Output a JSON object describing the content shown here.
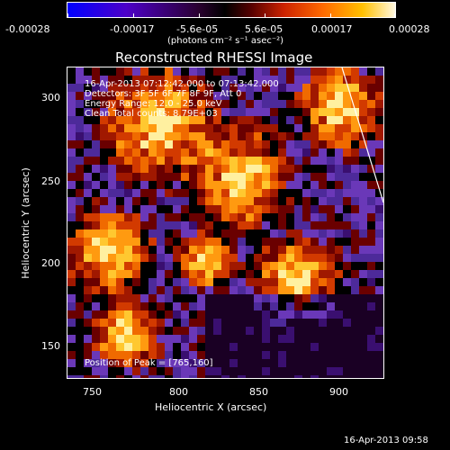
{
  "colorbar": {
    "tick_labels": [
      "-0.00028",
      "-0.00017",
      "-5.6e-05",
      "5.6e-05",
      "0.00017",
      "0.00028"
    ],
    "units_label": "(photons cm⁻² s⁻¹ asec⁻²)"
  },
  "plot": {
    "title": "Reconstructed RHESSI Image",
    "info_lines": [
      "16-Apr-2013 07:12:42.000 to 07:13:42.000",
      "Detectors: 3F 5F 6F 7F 8F 9F, Att 0",
      "Energy Range: 12.0 - 25.0 keV",
      "Clean     Total counts: 8.79E+03"
    ],
    "peak_label": "Position of Peak = [765,160]",
    "x_axis_label": "Heliocentric X (arcsec)",
    "y_axis_label": "Heliocentric Y (arcsec)",
    "x_ticks": [
      "750",
      "800",
      "850",
      "900"
    ],
    "y_ticks": [
      "300",
      "250",
      "200",
      "150"
    ]
  },
  "footer": {
    "timestamp": "16-Apr-2013 09:58"
  },
  "colors": {
    "background": "#000000",
    "hot_high": "#fff8e0",
    "hot_mid": "#ff6a00",
    "cool": "#4d00c8"
  }
}
